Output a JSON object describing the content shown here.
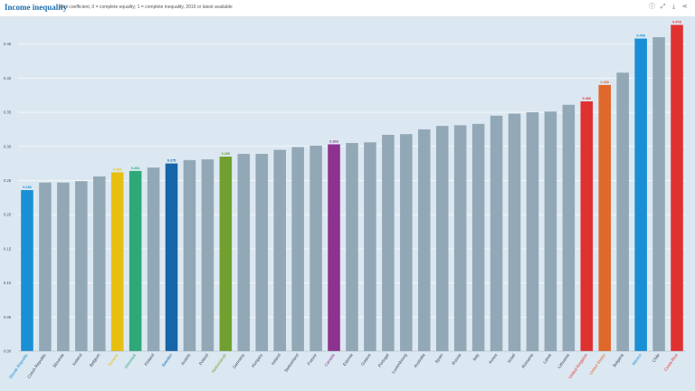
{
  "header": {
    "title": "Income inequality",
    "subtitle": "Gini coefficient, 0 = complete equality; 1 = complete inequality, 2019 or latest available",
    "icons": [
      "info-icon",
      "expand-icon",
      "download-icon",
      "share-icon"
    ]
  },
  "colors": {
    "default_bar": "#93a8b6",
    "plot_bg": "#dce8f1"
  },
  "chart_data": {
    "type": "bar",
    "title": "Income inequality",
    "subtitle": "Gini coefficient, 0 = complete equality; 1 = complete inequality, 2019 or latest available",
    "xlabel": "",
    "ylabel": "",
    "ylim": [
      0,
      0.48
    ],
    "yticks": [
      0.0,
      0.05,
      0.1,
      0.15,
      0.2,
      0.25,
      0.3,
      0.35,
      0.4,
      0.45
    ],
    "ytick_labels": [
      "0.00",
      "0.05",
      "0.10",
      "0.15",
      "0.20",
      "0.25",
      "0.30",
      "0.35",
      "0.40",
      "0.45"
    ],
    "grid": true,
    "categories": [
      "Slovak Republic",
      "Czech Republic",
      "Slovenia",
      "Iceland",
      "Belgium",
      "Norway",
      "Denmark",
      "Finland",
      "Sweden",
      "Austria",
      "Poland",
      "Netherlands",
      "Germany",
      "Hungary",
      "Ireland",
      "Switzerland",
      "France",
      "Canada",
      "Estonia",
      "Greece",
      "Portugal",
      "Luxembourg",
      "Australia",
      "Spain",
      "Russia",
      "Italy",
      "Korea",
      "Israel",
      "Romania",
      "Latvia",
      "Lithuania",
      "United Kingdom",
      "United States",
      "Bulgaria",
      "Mexico",
      "Chile",
      "Costa Rica"
    ],
    "values": [
      0.236,
      0.247,
      0.247,
      0.249,
      0.256,
      0.262,
      0.264,
      0.269,
      0.275,
      0.28,
      0.281,
      0.285,
      0.289,
      0.289,
      0.295,
      0.299,
      0.301,
      0.303,
      0.305,
      0.306,
      0.317,
      0.318,
      0.325,
      0.33,
      0.331,
      0.333,
      0.345,
      0.348,
      0.35,
      0.351,
      0.361,
      0.366,
      0.39,
      0.408,
      0.458,
      0.46,
      0.478
    ],
    "highlights": [
      {
        "category": "Slovak Republic",
        "color": "#1b8fd6",
        "label": "0.236"
      },
      {
        "category": "Norway",
        "color": "#e6bf12",
        "label": "0.262"
      },
      {
        "category": "Denmark",
        "color": "#2ea878",
        "label": "0.264"
      },
      {
        "category": "Sweden",
        "color": "#1565a8",
        "label": "0.275"
      },
      {
        "category": "Netherlands",
        "color": "#71a030",
        "label": "0.285"
      },
      {
        "category": "Canada",
        "color": "#8e3290",
        "label": "0.303"
      },
      {
        "category": "United Kingdom",
        "color": "#e03131",
        "label": "0.366"
      },
      {
        "category": "United States",
        "color": "#e0682a",
        "label": "0.390"
      },
      {
        "category": "Mexico",
        "color": "#1b8fd6",
        "label": "0.458"
      },
      {
        "category": "Costa Rica",
        "color": "#e03131",
        "label": "0.478"
      }
    ]
  }
}
